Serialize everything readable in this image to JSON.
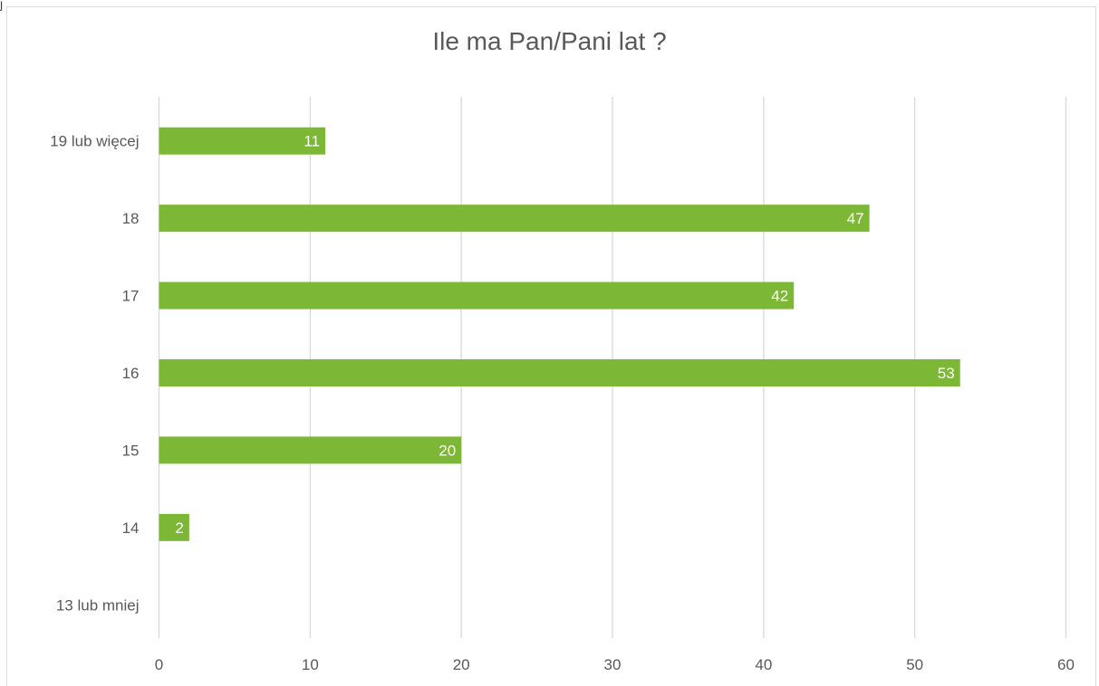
{
  "corner_text": "j",
  "chart_data": {
    "type": "bar",
    "orientation": "horizontal",
    "title": "Ile ma Pan/Pani lat ?",
    "categories": [
      "13 lub mniej",
      "14",
      "15",
      "16",
      "17",
      "18",
      "19 lub więcej"
    ],
    "values": [
      0,
      2,
      20,
      53,
      42,
      47,
      11
    ],
    "data_labels": [
      "",
      "2",
      "20",
      "53",
      "42",
      "47",
      "11"
    ],
    "xlim": [
      0,
      60
    ],
    "x_ticks": [
      0,
      10,
      20,
      30,
      40,
      50,
      60
    ],
    "bar_color": "#7cb835",
    "gridline_color": "#d9d9d9",
    "grid": true,
    "legend": "none"
  }
}
